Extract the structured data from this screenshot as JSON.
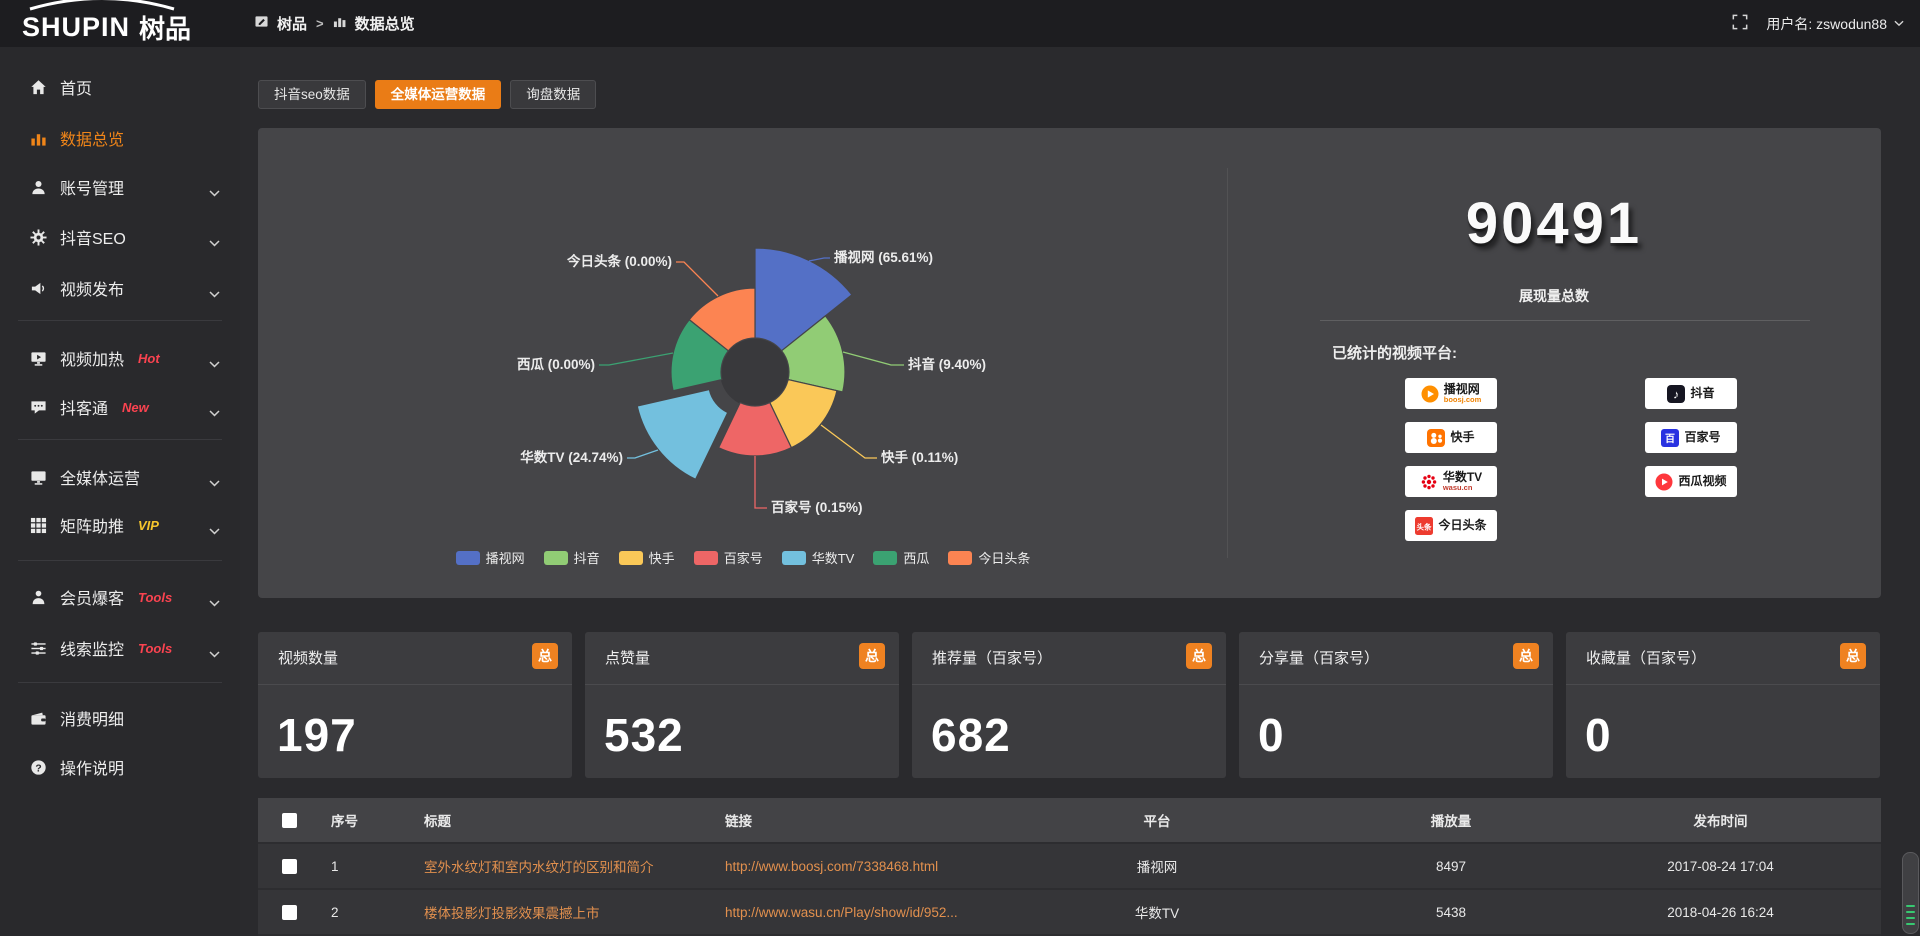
{
  "header": {
    "logo_text": "SHUPIN",
    "logo_suffix": "树品",
    "breadcrumb": {
      "root": "树品",
      "separator": ">",
      "current": "数据总览"
    },
    "username": "用户名: zswodun88"
  },
  "sidebar": {
    "items": [
      {
        "label": "首页",
        "icon": "home"
      },
      {
        "label": "数据总览",
        "icon": "bars",
        "active": true
      },
      {
        "label": "账号管理",
        "icon": "user",
        "chevron": true
      },
      {
        "label": "抖音SEO",
        "icon": "gear",
        "chevron": true
      },
      {
        "label": "视频发布",
        "icon": "megaphone",
        "chevron": true,
        "divider_after": true
      },
      {
        "label": "视频加热",
        "icon": "heat",
        "tag": "Hot",
        "tag_color": "#fa4350",
        "chevron": true
      },
      {
        "label": "抖客通",
        "icon": "chat",
        "tag": "New",
        "tag_color": "#fa4350",
        "chevron": true,
        "divider_after": true
      },
      {
        "label": "全媒体运营",
        "icon": "monitor",
        "chevron": true
      },
      {
        "label": "矩阵助推",
        "icon": "grid",
        "tag": "VIP",
        "tag_color": "#f6c62d",
        "chevron": true,
        "divider_after": true
      },
      {
        "label": "会员爆客",
        "icon": "person",
        "tag": "Tools",
        "tag_color": "#fa4350",
        "chevron": true
      },
      {
        "label": "线索监控",
        "icon": "sliders",
        "tag": "Tools",
        "tag_color": "#fa4350",
        "chevron": true,
        "divider_after": true
      },
      {
        "label": "消费明细",
        "icon": "wallet"
      },
      {
        "label": "操作说明",
        "icon": "help"
      }
    ]
  },
  "tabs": [
    {
      "label": "抖音seo数据",
      "active": false
    },
    {
      "label": "全媒体运营数据",
      "active": true
    },
    {
      "label": "询盘数据",
      "active": false
    }
  ],
  "chart_data": {
    "type": "pie",
    "variant": "nightingale-rose-donut",
    "legend_position": "bottom",
    "slices": [
      {
        "name": "播视网",
        "percent": 65.61,
        "label": "播视网 (65.61%)",
        "color": "#5470c6"
      },
      {
        "name": "抖音",
        "percent": 9.4,
        "label": "抖音 (9.40%)",
        "color": "#91cc75"
      },
      {
        "name": "快手",
        "percent": 0.11,
        "label": "快手 (0.11%)",
        "color": "#fac858"
      },
      {
        "name": "百家号",
        "percent": 0.15,
        "label": "百家号 (0.15%)",
        "color": "#ee6666"
      },
      {
        "name": "华数TV",
        "percent": 24.74,
        "label": "华数TV (24.74%)",
        "color": "#73c0de"
      },
      {
        "name": "西瓜",
        "percent": 0.0,
        "label": "西瓜 (0.00%)",
        "color": "#3ba272"
      },
      {
        "name": "今日头条",
        "percent": 0.0,
        "label": "今日头条 (0.00%)",
        "color": "#fc8452"
      }
    ],
    "legend": [
      "播视网",
      "抖音",
      "快手",
      "百家号",
      "华数TV",
      "西瓜",
      "今日头条"
    ]
  },
  "summary": {
    "total_value": "90491",
    "total_label": "展现量总数",
    "platforms_label": "已统计的视频平台:",
    "platforms_left": [
      {
        "name": "播视网",
        "sub": "boosj.com",
        "logo": "boosj"
      },
      {
        "name": "快手",
        "logo": "kuaishou"
      },
      {
        "name": "华数TV",
        "sub": "wasu.cn",
        "logo": "wasu"
      },
      {
        "name": "今日头条",
        "logo": "toutiao"
      }
    ],
    "platforms_right": [
      {
        "name": "抖音",
        "logo": "douyin"
      },
      {
        "name": "百家号",
        "logo": "baijiahao"
      },
      {
        "name": "西瓜视频",
        "logo": "xigua"
      }
    ]
  },
  "stat_cards": [
    {
      "label": "视频数量",
      "badge": "总",
      "value": "197"
    },
    {
      "label": "点赞量",
      "badge": "总",
      "value": "532"
    },
    {
      "label": "推荐量（百家号）",
      "badge": "总",
      "value": "682"
    },
    {
      "label": "分享量（百家号）",
      "badge": "总",
      "value": "0"
    },
    {
      "label": "收藏量（百家号）",
      "badge": "总",
      "value": "0"
    }
  ],
  "table": {
    "columns": [
      "序号",
      "标题",
      "链接",
      "平台",
      "播放量",
      "发布时间"
    ],
    "rows": [
      {
        "index": "1",
        "title": "室外水纹灯和室内水纹灯的区别和简介",
        "link": "http://www.boosj.com/7338468.html",
        "platform": "播视网",
        "plays": "8497",
        "time": "2017-08-24 17:04"
      },
      {
        "index": "2",
        "title": "楼体投影灯投影效果震撼上市",
        "link": "http://www.wasu.cn/Play/show/id/952...",
        "platform": "华数TV",
        "plays": "5438",
        "time": "2018-04-26 16:24"
      }
    ]
  },
  "colors": {
    "accent_orange": "#ea7c16",
    "badge_orange": "#ef8221",
    "link_orange": "#e2904e",
    "sidebar_active": "#f08519",
    "tag_red": "#fa4350",
    "tag_yellow": "#f6c62d"
  }
}
